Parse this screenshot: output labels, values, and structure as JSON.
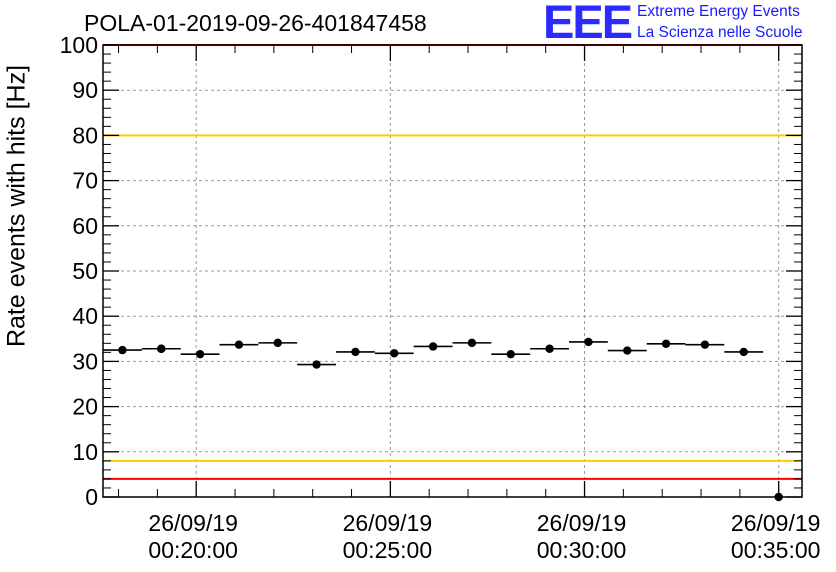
{
  "header": {
    "title": "POLA-01-2019-09-26-401847458",
    "logo_mark": "EEE",
    "logo_line1": "Extreme Energy Events",
    "logo_line2": "La Scienza nelle Scuole"
  },
  "colors": {
    "data": "#000000",
    "red_line": "#ff0000",
    "yellow_line": "#ffcc00",
    "grid": "#999999",
    "logo": "#1a1aff"
  },
  "chart_data": {
    "type": "scatter",
    "title": "POLA-01-2019-09-26-401847458",
    "xlabel": "",
    "ylabel": "Rate events with hits [Hz]",
    "ylim": [
      0,
      100
    ],
    "xlim_minutes": [
      17.6,
      35.6
    ],
    "grid": true,
    "y_ticks": [
      0,
      10,
      20,
      30,
      40,
      50,
      60,
      70,
      80,
      90,
      100
    ],
    "x_ticks": [
      {
        "minute": 20,
        "date": "26/09/19",
        "time": "00:20:00"
      },
      {
        "minute": 25,
        "date": "26/09/19",
        "time": "00:25:00"
      },
      {
        "minute": 30,
        "date": "26/09/19",
        "time": "00:30:00"
      },
      {
        "minute": 35,
        "date": "26/09/19",
        "time": "00:35:00"
      }
    ],
    "bin_width_minutes": 1,
    "series": [
      {
        "points": [
          {
            "minute": 18.1,
            "value": 32.5
          },
          {
            "minute": 19.1,
            "value": 32.8
          },
          {
            "minute": 19.1,
            "value": 32.8
          },
          {
            "minute": 20.1,
            "value": 31.6
          },
          {
            "minute": 21.1,
            "value": 33.7
          },
          {
            "minute": 22.1,
            "value": 34.1
          },
          {
            "minute": 23.1,
            "value": 29.3
          },
          {
            "minute": 24.1,
            "value": 32.1
          },
          {
            "minute": 25.1,
            "value": 31.8
          },
          {
            "minute": 26.1,
            "value": 33.3
          },
          {
            "minute": 27.1,
            "value": 34.1
          },
          {
            "minute": 28.1,
            "value": 31.6
          },
          {
            "minute": 29.1,
            "value": 32.8
          },
          {
            "minute": 30.1,
            "value": 34.3
          },
          {
            "minute": 31.1,
            "value": 32.4
          },
          {
            "minute": 32.1,
            "value": 33.9
          },
          {
            "minute": 33.1,
            "value": 33.7
          },
          {
            "minute": 34.1,
            "value": 32.1
          },
          {
            "minute": 35.0,
            "value": 0
          }
        ]
      }
    ],
    "reference_lines": [
      {
        "value": 100,
        "color": "red"
      },
      {
        "value": 80,
        "color": "yellow"
      },
      {
        "value": 8,
        "color": "yellow"
      },
      {
        "value": 4,
        "color": "red"
      }
    ]
  }
}
